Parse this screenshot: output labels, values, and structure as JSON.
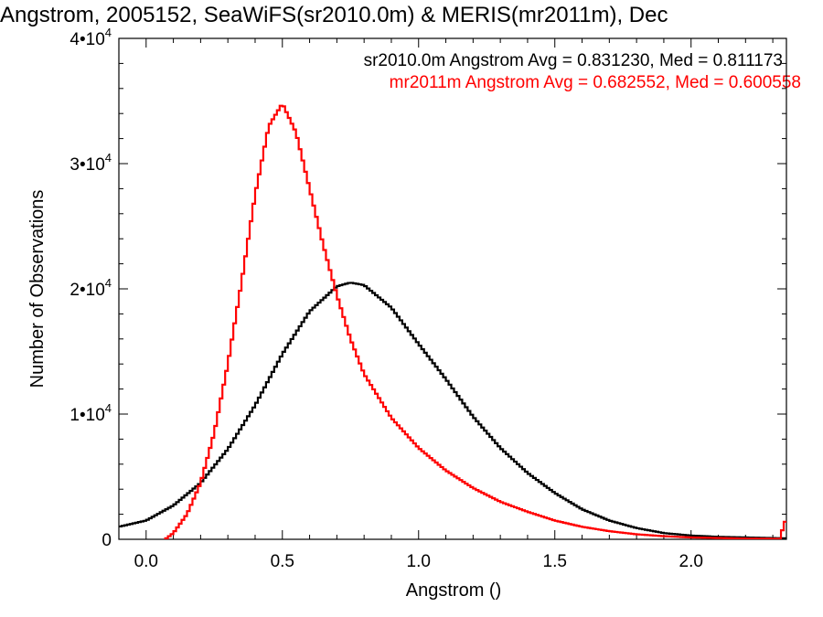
{
  "chart_data": {
    "type": "line",
    "title": "Angstrom, 2005152, SeaWiFS(sr2010.0m) & MERIS(mr2011m), Dec",
    "xlabel": "Angstrom ()",
    "ylabel": "Number of Observations",
    "xlim": [
      -0.1,
      2.35
    ],
    "ylim": [
      0,
      40000
    ],
    "x_ticks": [
      {
        "value": 0.0,
        "label": "0.0"
      },
      {
        "value": 0.5,
        "label": "0.5"
      },
      {
        "value": 1.0,
        "label": "1.0"
      },
      {
        "value": 1.5,
        "label": "1.5"
      },
      {
        "value": 2.0,
        "label": "2.0"
      }
    ],
    "y_ticks": [
      {
        "value": 0,
        "base": "0",
        "exp": ""
      },
      {
        "value": 10000,
        "base": "1•10",
        "exp": "4"
      },
      {
        "value": 20000,
        "base": "2•10",
        "exp": "4"
      },
      {
        "value": 30000,
        "base": "3•10",
        "exp": "4"
      },
      {
        "value": 40000,
        "base": "4•10",
        "exp": "4"
      }
    ],
    "legend_placement": "top-right",
    "series": [
      {
        "name": "sr2010.0m",
        "color": "#000000",
        "annotation": "sr2010.0m Angstrom Avg = 0.831230, Med = 0.811173",
        "x": [
          -0.1,
          0.0,
          0.1,
          0.2,
          0.3,
          0.4,
          0.5,
          0.6,
          0.7,
          0.75,
          0.8,
          0.9,
          1.0,
          1.1,
          1.2,
          1.3,
          1.4,
          1.5,
          1.6,
          1.7,
          1.8,
          1.9,
          2.0,
          2.1,
          2.2,
          2.3,
          2.35
        ],
        "y": [
          1000,
          1500,
          2700,
          4500,
          7200,
          10700,
          14800,
          18200,
          20200,
          20500,
          20300,
          18500,
          15600,
          12800,
          9800,
          7300,
          5300,
          3700,
          2400,
          1500,
          900,
          500,
          300,
          200,
          150,
          100,
          80
        ]
      },
      {
        "name": "mr2011m",
        "color": "#ff0000",
        "annotation": "mr2011m Angstrom Avg = 0.682552, Med = 0.600558",
        "x": [
          0.07,
          0.1,
          0.15,
          0.2,
          0.25,
          0.3,
          0.35,
          0.4,
          0.45,
          0.5,
          0.55,
          0.6,
          0.65,
          0.7,
          0.75,
          0.8,
          0.9,
          1.0,
          1.1,
          1.2,
          1.3,
          1.4,
          1.5,
          1.6,
          1.7,
          1.8,
          1.9,
          2.0,
          2.1,
          2.2,
          2.3,
          2.33,
          2.34,
          2.35
        ],
        "y": [
          0,
          500,
          2000,
          4500,
          8500,
          14000,
          20500,
          27500,
          33000,
          34800,
          32500,
          28000,
          23500,
          19500,
          16000,
          13200,
          9700,
          7300,
          5500,
          4100,
          3000,
          2200,
          1500,
          1000,
          650,
          400,
          250,
          150,
          100,
          60,
          40,
          40,
          1400,
          1400
        ]
      }
    ]
  }
}
